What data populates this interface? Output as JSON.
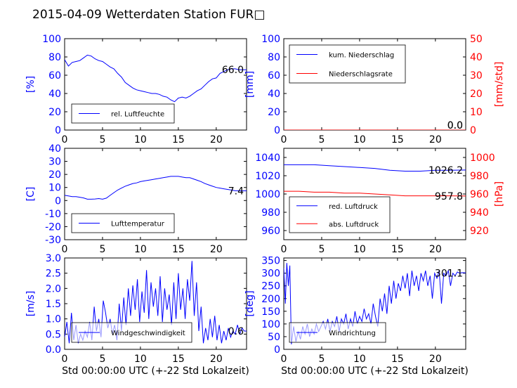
{
  "title": "2015-04-09 Wetterdaten Station FUR□",
  "colors": {
    "blue": "#0000ff",
    "red": "#ff0000",
    "black": "#000000"
  },
  "xaxis": {
    "ticks": [
      0,
      5,
      10,
      15,
      20
    ],
    "label": "Std 00:00:00 UTC (+-22 Std Lokalzeit)",
    "range": [
      0,
      24
    ]
  },
  "chart_data": [
    {
      "type": "line",
      "ylabel": "[%]",
      "ylim": [
        0,
        100
      ],
      "yticks": [
        0,
        20,
        40,
        60,
        80,
        100
      ],
      "last_value": "66.0",
      "legend": [
        "rel. Luftfeuchte"
      ],
      "legend_placement": "lower-left",
      "series": [
        {
          "name": "rel. Luftfeuchte",
          "color": "#0000ff",
          "x": [
            0,
            0.5,
            1,
            1.5,
            2,
            2.5,
            3,
            3.5,
            4,
            4.5,
            5,
            5.5,
            6,
            6.5,
            7,
            7.5,
            8,
            8.5,
            9,
            9.5,
            10,
            10.5,
            11,
            11.5,
            12,
            12.5,
            13,
            13.5,
            14,
            14.5,
            15,
            15.5,
            16,
            16.5,
            17,
            17.5,
            18,
            18.5,
            19,
            19.5,
            20,
            20.5,
            21,
            21.5,
            22,
            22.5,
            23,
            23.5,
            24
          ],
          "values": [
            77,
            70,
            74,
            75,
            76,
            79,
            82,
            81,
            78,
            76,
            75,
            72,
            69,
            67,
            62,
            58,
            52,
            49,
            46,
            44,
            43,
            42,
            41,
            40,
            40,
            39,
            37,
            36,
            33,
            31,
            35,
            36,
            35,
            37,
            40,
            43,
            45,
            49,
            53,
            56,
            57,
            62,
            64,
            66,
            67,
            67,
            66,
            66,
            66
          ]
        }
      ]
    },
    {
      "type": "line",
      "ylabel": "[mm]",
      "ylim": [
        0,
        100
      ],
      "yticks": [
        0,
        20,
        40,
        60,
        80,
        100
      ],
      "ylabel_right": "[mm/std]",
      "ylim_right": [
        0,
        50
      ],
      "yticks_right": [
        0,
        10,
        20,
        30,
        40,
        50
      ],
      "last_value": "0.0",
      "last_value_right": "0.0",
      "legend": [
        "kum. Niederschlag",
        "Niederschlagsrate"
      ],
      "legend_placement": "upper-left",
      "series": [
        {
          "name": "kum. Niederschlag",
          "color": "#0000ff",
          "x": [
            0,
            24
          ],
          "values": [
            0,
            0
          ]
        },
        {
          "name": "Niederschlagsrate",
          "color": "#ff0000",
          "axis": "right",
          "x": [
            0,
            24
          ],
          "values": [
            0,
            0
          ]
        }
      ]
    },
    {
      "type": "line",
      "ylabel": "[C]",
      "ylim": [
        -30,
        40
      ],
      "yticks": [
        -30,
        -20,
        -10,
        0,
        10,
        20,
        30,
        40
      ],
      "last_value": "7.4",
      "legend": [
        "Lufttemperatur"
      ],
      "legend_placement": "lower-left",
      "series": [
        {
          "name": "Lufttemperatur",
          "color": "#0000ff",
          "x": [
            0,
            0.5,
            1,
            1.5,
            2,
            2.5,
            3,
            3.5,
            4,
            4.5,
            5,
            5.5,
            6,
            6.5,
            7,
            7.5,
            8,
            8.5,
            9,
            9.5,
            10,
            10.5,
            11,
            11.5,
            12,
            12.5,
            13,
            13.5,
            14,
            14.5,
            15,
            15.5,
            16,
            16.5,
            17,
            17.5,
            18,
            18.5,
            19,
            19.5,
            20,
            20.5,
            21,
            21.5,
            22,
            22.5,
            23,
            23.5,
            24
          ],
          "values": [
            4,
            3.5,
            3,
            3,
            2.5,
            2,
            1,
            1,
            1.2,
            1.5,
            1,
            1.8,
            4,
            6,
            8,
            9.5,
            11,
            12,
            13,
            13.5,
            14.5,
            15,
            15.5,
            16,
            16.5,
            17,
            17.5,
            18,
            18.5,
            18.5,
            18.5,
            18,
            17.5,
            17.5,
            16.5,
            15.5,
            14.5,
            13,
            12,
            11,
            10,
            9.5,
            9,
            8.5,
            8,
            7.5,
            7.5,
            7.4,
            7.4
          ]
        }
      ]
    },
    {
      "type": "line",
      "ylabel": "",
      "ylim": [
        950,
        1050
      ],
      "yticks": [
        960,
        980,
        1000,
        1020,
        1040
      ],
      "ylabel_right": "[hPa]",
      "ylim_right": [
        910,
        1010
      ],
      "yticks_right": [
        920,
        940,
        960,
        980,
        1000
      ],
      "last_value": "1026.2",
      "last_value_right": "957.8",
      "legend": [
        "red. Luftdruck",
        "abs. Luftdruck"
      ],
      "legend_placement": "lower-left",
      "series": [
        {
          "name": "red. Luftdruck",
          "color": "#0000ff",
          "x": [
            0,
            2,
            4,
            6,
            8,
            10,
            12,
            14,
            16,
            18,
            20,
            22,
            24
          ],
          "values": [
            1032,
            1032,
            1032,
            1031,
            1030,
            1029,
            1028,
            1026,
            1025,
            1025,
            1026,
            1026,
            1026.2
          ]
        },
        {
          "name": "abs. Luftdruck",
          "color": "#ff0000",
          "axis": "right",
          "x": [
            0,
            2,
            4,
            6,
            8,
            10,
            12,
            14,
            16,
            18,
            20,
            22,
            24
          ],
          "values": [
            963,
            963,
            962,
            962,
            961,
            961,
            960,
            959,
            958,
            958,
            958,
            958,
            957.8
          ]
        }
      ]
    },
    {
      "type": "line",
      "ylabel": "[m/s]",
      "ylim": [
        0,
        3
      ],
      "yticks": [
        0.0,
        0.5,
        1.0,
        1.5,
        2.0,
        2.5,
        3.0
      ],
      "last_value": "0.6",
      "legend": [
        "Windgeschwindigkeit"
      ],
      "legend_placement": "lower-left",
      "series": [
        {
          "name": "Windgeschwindigkeit",
          "color": "#0000ff",
          "x": [
            0,
            0.3,
            0.6,
            0.9,
            1.2,
            1.5,
            1.8,
            2.1,
            2.4,
            2.7,
            3,
            3.3,
            3.6,
            3.9,
            4.2,
            4.5,
            4.8,
            5.1,
            5.4,
            5.7,
            6,
            6.3,
            6.6,
            6.9,
            7.2,
            7.5,
            7.8,
            8.1,
            8.4,
            8.7,
            9,
            9.3,
            9.6,
            9.9,
            10.2,
            10.5,
            10.8,
            11.1,
            11.4,
            11.7,
            12,
            12.3,
            12.6,
            12.9,
            13.2,
            13.5,
            13.8,
            14.1,
            14.4,
            14.7,
            15,
            15.3,
            15.6,
            15.9,
            16.2,
            16.5,
            16.8,
            17.1,
            17.4,
            17.7,
            18,
            18.3,
            18.6,
            18.9,
            19.2,
            19.5,
            19.8,
            20.1,
            20.4,
            20.7,
            21,
            21.3,
            21.6,
            21.9,
            22.2,
            22.5,
            22.8,
            23.1,
            23.4,
            23.7,
            24
          ],
          "values": [
            0.4,
            0.9,
            0.2,
            1.2,
            0.3,
            0.8,
            0.2,
            0.5,
            0.3,
            0.6,
            0.4,
            0.9,
            0.3,
            1.4,
            0.6,
            1.0,
            0.4,
            1.6,
            1.2,
            0.7,
            1.0,
            0.5,
            0.8,
            0.3,
            1.5,
            0.6,
            1.7,
            0.8,
            2.0,
            1.1,
            2.1,
            1.3,
            2.3,
            0.9,
            1.9,
            1.2,
            2.6,
            1.0,
            2.2,
            1.4,
            2.0,
            1.1,
            2.4,
            0.9,
            2.0,
            1.3,
            1.8,
            0.8,
            2.2,
            1.0,
            2.5,
            1.3,
            2.0,
            1.0,
            2.3,
            1.6,
            2.9,
            1.1,
            2.2,
            0.6,
            1.4,
            0.2,
            0.7,
            0.3,
            1.0,
            0.4,
            1.1,
            0.3,
            0.8,
            0.2,
            0.6,
            0.3,
            0.7,
            0.4,
            0.6,
            0.5,
            0.8,
            0.5,
            0.7,
            0.6,
            0.6
          ]
        }
      ]
    },
    {
      "type": "line",
      "ylabel": "[deg]",
      "ylim": [
        0,
        360
      ],
      "yticks": [
        0,
        50,
        100,
        150,
        200,
        250,
        300,
        350
      ],
      "last_value": "301.1",
      "legend": [
        "Windrichtung"
      ],
      "legend_placement": "lower-left",
      "series": [
        {
          "name": "Windrichtung",
          "color": "#0000ff",
          "x": [
            0,
            0.2,
            0.4,
            0.6,
            0.8,
            1,
            1.3,
            1.6,
            1.9,
            2.2,
            2.5,
            2.8,
            3.1,
            3.4,
            3.7,
            4,
            4.3,
            4.6,
            4.9,
            5.2,
            5.5,
            5.8,
            6.1,
            6.4,
            6.7,
            7,
            7.3,
            7.6,
            7.9,
            8.2,
            8.5,
            8.8,
            9.1,
            9.4,
            9.7,
            10,
            10.3,
            10.6,
            10.9,
            11.2,
            11.5,
            11.8,
            12.1,
            12.4,
            12.7,
            13,
            13.3,
            13.6,
            13.9,
            14.2,
            14.5,
            14.8,
            15.1,
            15.4,
            15.7,
            16,
            16.3,
            16.6,
            16.9,
            17.2,
            17.5,
            17.8,
            18.1,
            18.4,
            18.7,
            19,
            19.3,
            19.6,
            19.9,
            20.2,
            20.5,
            20.8,
            21.1,
            21.4,
            21.7,
            22,
            22.3,
            22.6,
            22.9,
            23.2,
            23.5,
            24
          ],
          "values": [
            320,
            180,
            340,
            250,
            330,
            20,
            90,
            30,
            70,
            40,
            90,
            60,
            100,
            50,
            80,
            60,
            100,
            70,
            90,
            110,
            80,
            120,
            70,
            110,
            90,
            130,
            70,
            120,
            100,
            140,
            80,
            120,
            90,
            150,
            100,
            130,
            110,
            160,
            120,
            140,
            100,
            180,
            130,
            90,
            200,
            150,
            220,
            140,
            250,
            180,
            270,
            200,
            260,
            230,
            290,
            240,
            300,
            210,
            310,
            250,
            290,
            230,
            300,
            270,
            310,
            250,
            290,
            200,
            300,
            280,
            310,
            180,
            300,
            290,
            310,
            250,
            300,
            290,
            305,
            300,
            302,
            301
          ]
        }
      ]
    }
  ]
}
